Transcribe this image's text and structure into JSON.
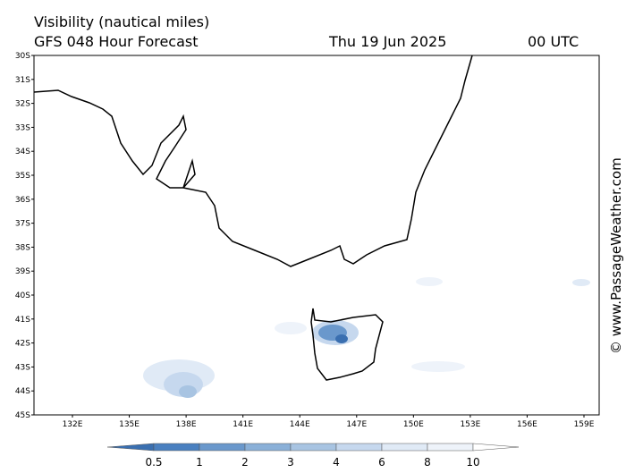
{
  "header": {
    "title": "Visibility (nautical miles)",
    "model": "GFS 048 Hour Forecast",
    "date": "Thu 19 Jun 2025",
    "time": "00 UTC"
  },
  "map": {
    "lat_labels": [
      "30S",
      "31S",
      "32S",
      "33S",
      "34S",
      "35S",
      "36S",
      "37S",
      "38S",
      "39S",
      "40S",
      "41S",
      "42S",
      "43S",
      "44S",
      "45S"
    ],
    "lon_labels": [
      "132E",
      "135E",
      "138E",
      "141E",
      "144E",
      "147E",
      "150E",
      "153E",
      "156E",
      "159E"
    ]
  },
  "legend": {
    "labels": [
      "0.5",
      "1",
      "2",
      "3",
      "4",
      "6",
      "8",
      "10"
    ],
    "colors": [
      "#3a6fb0",
      "#4a80c0",
      "#6a98cc",
      "#8ab0d8",
      "#a8c4e2",
      "#c6d8ee",
      "#e0eaf6",
      "#eef3fa",
      "#ffffff"
    ]
  },
  "watermark": "© www.PassageWeather.com"
}
